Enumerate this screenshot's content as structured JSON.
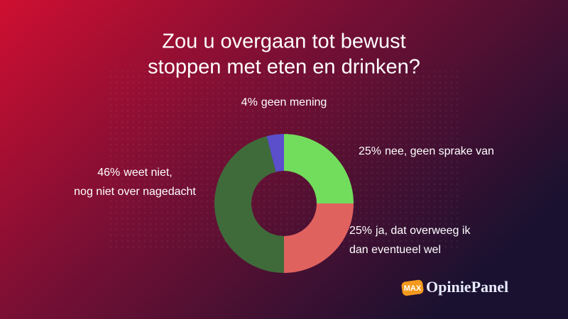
{
  "chart_data": {
    "type": "donut",
    "title": [
      "Zou u overgaan tot bewust",
      "stoppen met eten en drinken?"
    ],
    "categories": [
      [
        "nee, geen sprake van"
      ],
      [
        "ja, dat overweeg ik",
        "dan eventueel wel"
      ],
      [
        "weet niet,",
        "nog niet over nagedacht"
      ],
      [
        "geen mening"
      ]
    ],
    "values": [
      25,
      25,
      46,
      4
    ],
    "value_labels": [
      "25%",
      "25%",
      "46%",
      "4%"
    ],
    "colors": [
      "#72dd5c",
      "#e0625f",
      "#3f6b3b",
      "#5b4fcc"
    ]
  },
  "logo": {
    "badge": "MAX",
    "name": "OpiniePanel"
  }
}
